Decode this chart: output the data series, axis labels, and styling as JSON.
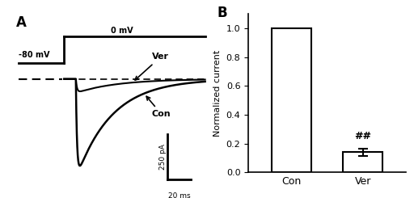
{
  "panel_A_label": "A",
  "panel_B_label": "B",
  "voltage_step_label_top": "0 mV",
  "voltage_step_label_left": "-80 mV",
  "ver_label": "Ver",
  "con_label": "Con",
  "scale_bar_current": "250 pA",
  "scale_bar_time": "20 ms",
  "bar_categories": [
    "Con",
    "Ver"
  ],
  "bar_values": [
    1.0,
    0.14
  ],
  "bar_errors": [
    0.0,
    0.025
  ],
  "bar_color": "#ffffff",
  "bar_edgecolor": "#000000",
  "ylabel_B": "Normalized current",
  "ylim_B": [
    0.0,
    1.1
  ],
  "yticks_B": [
    0.0,
    0.2,
    0.4,
    0.6,
    0.8,
    1.0
  ],
  "sig_label": "##",
  "background_color": "#ffffff",
  "text_color": "#000000"
}
